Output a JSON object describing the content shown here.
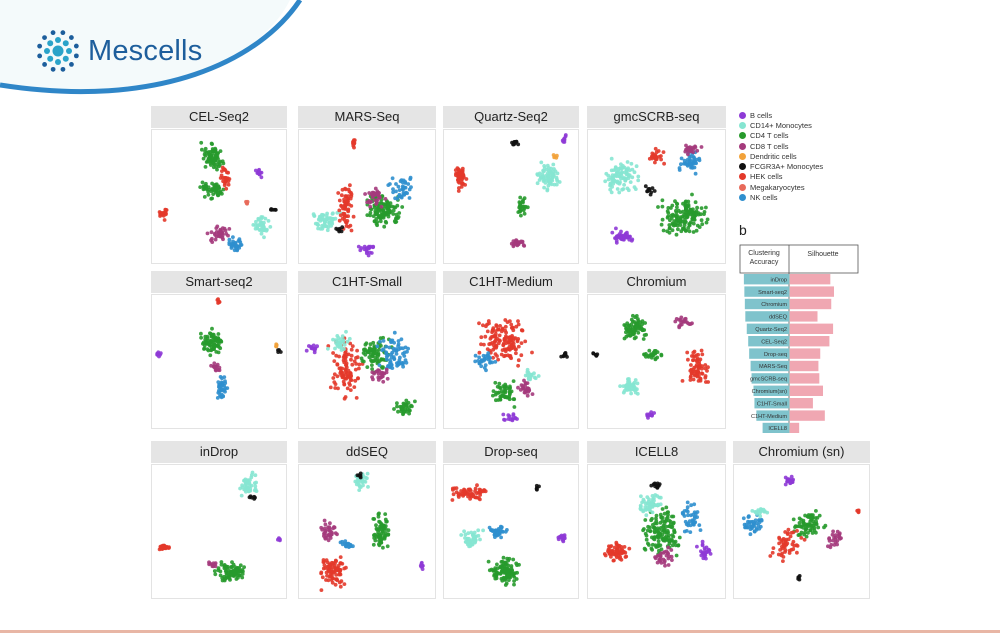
{
  "brand": {
    "name": "Mescells"
  },
  "panels": [
    "CEL-Seq2",
    "MARS-Seq",
    "Quartz-Seq2",
    "gmcSCRB-seq",
    "Smart-seq2",
    "C1HT-Small",
    "C1HT-Medium",
    "Chromium",
    "inDrop",
    "ddSEQ",
    "Drop-seq",
    "ICELL8",
    "Chromium (sn)"
  ],
  "legend": [
    {
      "label": "B cells",
      "color": "#8e3ad6"
    },
    {
      "label": "CD14+ Monocytes",
      "color": "#86e5d1"
    },
    {
      "label": "CD4 T cells",
      "color": "#279a2c"
    },
    {
      "label": "CD8 T cells",
      "color": "#a43a7c"
    },
    {
      "label": "Dendritic cells",
      "color": "#f2a23a"
    },
    {
      "label": "FCGR3A+ Monocytes",
      "color": "#111111"
    },
    {
      "label": "HEK cells",
      "color": "#e3392a"
    },
    {
      "label": "Megakaryocytes",
      "color": "#e86a5a"
    },
    {
      "label": "NK cells",
      "color": "#2f8fce"
    }
  ],
  "panel_b": {
    "label": "b",
    "headers": {
      "left": "Clustering Accuracy",
      "right": "Silhouette"
    },
    "left_color": "#7fc3cc",
    "right_color": "#f0a7b2"
  },
  "chart_data": {
    "type": "bar",
    "categories": [
      "inDrop",
      "Smart-seq2",
      "Chromium",
      "ddSEQ",
      "Quartz-Seq2",
      "CEL-Seq2",
      "Drop-seq",
      "MARS-Seq",
      "gmcSCRB-seq",
      "Chromium(sn)",
      "C1HT-Small",
      "C1HT-Medium",
      "ICELL8"
    ],
    "series": [
      {
        "name": "Clustering Accuracy",
        "values": [
          0.94,
          0.93,
          0.92,
          0.91,
          0.88,
          0.85,
          0.83,
          0.8,
          0.78,
          0.74,
          0.72,
          0.68,
          0.55
        ]
      },
      {
        "name": "Silhouette",
        "values": [
          0.44,
          0.48,
          0.45,
          0.3,
          0.47,
          0.43,
          0.33,
          0.31,
          0.32,
          0.36,
          0.25,
          0.38,
          0.1
        ]
      }
    ],
    "left_ticks": [
      "1",
      "0.5",
      "0"
    ],
    "right_ticks": [
      "0",
      "0.5"
    ],
    "left_range": [
      1,
      0
    ],
    "right_range": [
      0,
      0.6
    ]
  }
}
